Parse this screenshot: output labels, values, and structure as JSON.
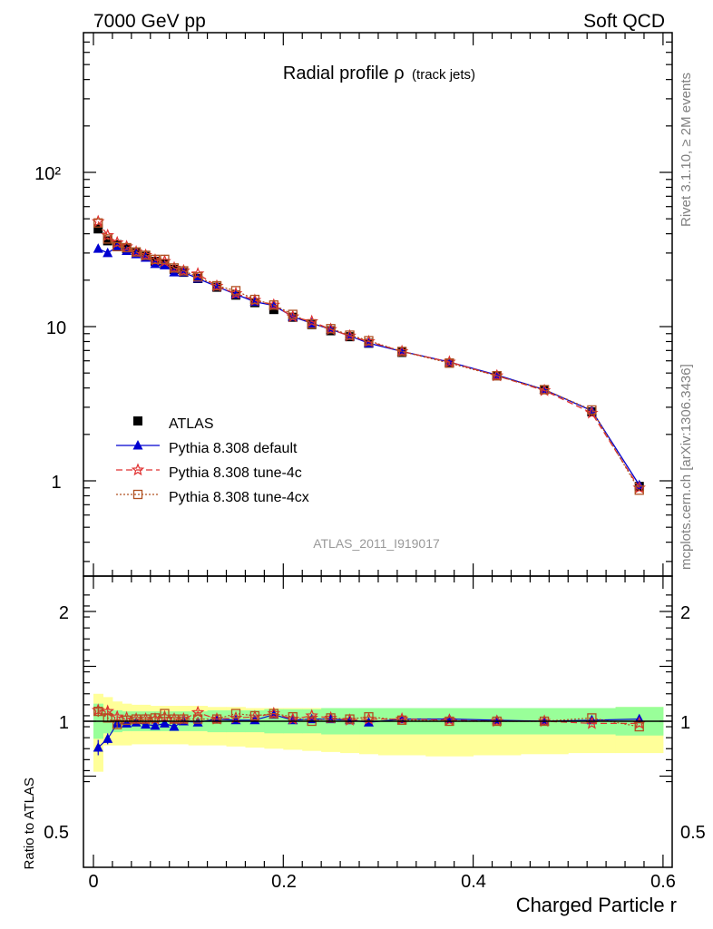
{
  "header": {
    "left": "7000 GeV pp",
    "right": "Soft QCD"
  },
  "side": {
    "top": "Rivet 3.1.10, ≥ 2M events",
    "bottom": "mcplots.cern.ch [arXiv:1306.3436]"
  },
  "chart_data": [
    {
      "type": "line",
      "title_main": "Radial profile ρ",
      "title_sub": "(track jets)",
      "analysis_label": "ATLAS_2011_I919017",
      "yscale": "log",
      "ylim": [
        0.27,
        900
      ],
      "xlim": [
        -0.02,
        0.61
      ],
      "ytick_labels": [
        "1",
        "10",
        "10²"
      ],
      "legend_placement": "lower-left",
      "x": [
        0.005,
        0.015,
        0.025,
        0.035,
        0.045,
        0.055,
        0.065,
        0.075,
        0.085,
        0.095,
        0.11,
        0.13,
        0.15,
        0.17,
        0.19,
        0.21,
        0.23,
        0.25,
        0.27,
        0.29,
        0.325,
        0.375,
        0.425,
        0.475,
        0.525,
        0.575
      ],
      "series": [
        {
          "name": "ATLAS",
          "color": "#000000",
          "marker": "square",
          "values": [
            43,
            36,
            34,
            32,
            30,
            28.5,
            26.5,
            25.5,
            23.5,
            22.5,
            20.5,
            18,
            16,
            14.3,
            12.9,
            11.5,
            10.3,
            9.4,
            8.6,
            7.8,
            6.8,
            5.8,
            4.8,
            3.9,
            2.8,
            0.92
          ]
        },
        {
          "name": "Pythia 8.308 default",
          "color": "#0000d0",
          "marker": "triangle",
          "line": "solid",
          "values": [
            32,
            30,
            33,
            31,
            29.5,
            28,
            25.5,
            25,
            22.5,
            22.5,
            20.5,
            18.2,
            16.2,
            14.5,
            13.7,
            11.6,
            10.5,
            9.6,
            8.7,
            7.8,
            6.9,
            5.9,
            4.85,
            3.9,
            2.85,
            0.94
          ]
        },
        {
          "name": "Pythia 8.308 tune-4c",
          "color": "#e03030",
          "marker": "star",
          "line": "dashed",
          "values": [
            48,
            39,
            35,
            33,
            30.5,
            29,
            27,
            26.5,
            24,
            23,
            22,
            18.3,
            16.4,
            14.8,
            13.8,
            11.6,
            10.8,
            9.6,
            8.7,
            8.0,
            6.9,
            5.9,
            4.8,
            3.85,
            2.75,
            0.9
          ]
        },
        {
          "name": "Pythia 8.308 tune-4cx",
          "color": "#b05020",
          "marker": "open-square",
          "line": "dotted",
          "values": [
            47,
            37,
            33,
            32.5,
            30.5,
            29,
            27.3,
            27.3,
            24,
            23,
            21,
            18.4,
            17.1,
            15,
            13.8,
            12,
            10.4,
            9.7,
            8.8,
            8.1,
            6.9,
            5.8,
            4.8,
            3.9,
            2.88,
            0.87
          ]
        }
      ]
    },
    {
      "type": "line",
      "ylabel": "Ratio to ATLAS",
      "xlabel": "Charged Particle r",
      "ylim": [
        0.4,
        2.3
      ],
      "xlim": [
        -0.02,
        0.61
      ],
      "ytick_labels": [
        "0.5",
        "1",
        "2"
      ],
      "xtick_labels": [
        "0",
        "0.2",
        "0.4",
        "0.6"
      ],
      "reference_line": 1,
      "green_band": [
        [
          0.0,
          0.01,
          0.16
        ],
        [
          0.01,
          0.02,
          0.11
        ],
        [
          0.02,
          0.03,
          0.1
        ],
        [
          0.03,
          0.04,
          0.09
        ],
        [
          0.04,
          0.05,
          0.09
        ],
        [
          0.05,
          0.06,
          0.09
        ],
        [
          0.06,
          0.07,
          0.09
        ],
        [
          0.07,
          0.08,
          0.09
        ],
        [
          0.08,
          0.09,
          0.09
        ],
        [
          0.09,
          0.1,
          0.09
        ],
        [
          0.1,
          0.12,
          0.09
        ],
        [
          0.12,
          0.14,
          0.1
        ],
        [
          0.14,
          0.16,
          0.1
        ],
        [
          0.16,
          0.18,
          0.1
        ],
        [
          0.18,
          0.2,
          0.11
        ],
        [
          0.2,
          0.22,
          0.11
        ],
        [
          0.22,
          0.24,
          0.11
        ],
        [
          0.24,
          0.26,
          0.12
        ],
        [
          0.26,
          0.28,
          0.12
        ],
        [
          0.28,
          0.3,
          0.12
        ],
        [
          0.3,
          0.35,
          0.12
        ],
        [
          0.35,
          0.4,
          0.12
        ],
        [
          0.4,
          0.45,
          0.12
        ],
        [
          0.45,
          0.5,
          0.12
        ],
        [
          0.5,
          0.55,
          0.12
        ],
        [
          0.55,
          0.6,
          0.13
        ]
      ],
      "yellow_band": [
        [
          0.0,
          0.01,
          0.46,
          0.25
        ],
        [
          0.01,
          0.02,
          0.22,
          0.22
        ],
        [
          0.02,
          0.03,
          0.22,
          0.18
        ],
        [
          0.03,
          0.04,
          0.22,
          0.16
        ],
        [
          0.04,
          0.05,
          0.21,
          0.15
        ],
        [
          0.05,
          0.06,
          0.21,
          0.15
        ],
        [
          0.06,
          0.07,
          0.21,
          0.14
        ],
        [
          0.07,
          0.08,
          0.21,
          0.14
        ],
        [
          0.08,
          0.09,
          0.21,
          0.14
        ],
        [
          0.09,
          0.1,
          0.21,
          0.14
        ],
        [
          0.1,
          0.12,
          0.22,
          0.14
        ],
        [
          0.12,
          0.14,
          0.22,
          0.13
        ],
        [
          0.14,
          0.16,
          0.23,
          0.13
        ],
        [
          0.16,
          0.18,
          0.24,
          0.12
        ],
        [
          0.18,
          0.2,
          0.25,
          0.12
        ],
        [
          0.2,
          0.22,
          0.26,
          0.12
        ],
        [
          0.22,
          0.24,
          0.27,
          0.12
        ],
        [
          0.24,
          0.26,
          0.28,
          0.12
        ],
        [
          0.26,
          0.28,
          0.29,
          0.12
        ],
        [
          0.28,
          0.3,
          0.3,
          0.12
        ],
        [
          0.3,
          0.35,
          0.31,
          0.12
        ],
        [
          0.35,
          0.4,
          0.32,
          0.12
        ],
        [
          0.4,
          0.45,
          0.31,
          0.12
        ],
        [
          0.45,
          0.5,
          0.3,
          0.12
        ],
        [
          0.5,
          0.55,
          0.29,
          0.12
        ],
        [
          0.55,
          0.6,
          0.29,
          0.13
        ]
      ],
      "series": [
        {
          "name": "Pythia 8.308 default",
          "color": "#0000d0",
          "marker": "triangle",
          "line": "solid",
          "values": [
            0.76,
            0.84,
            0.98,
            0.98,
            0.99,
            0.97,
            0.96,
            0.98,
            0.95,
            1.0,
            0.99,
            1.02,
            1.01,
            1.01,
            1.06,
            1.01,
            1.02,
            1.02,
            1.01,
            0.99,
            1.02,
            1.02,
            1.01,
            1.0,
            1.01,
            1.02
          ],
          "errors": [
            0.07,
            0.05,
            0.03,
            0.02,
            0.02,
            0.02,
            0.02,
            0.02,
            0.02,
            0.02,
            0.02,
            0.01,
            0.01,
            0.01,
            0.01,
            0.01,
            0.01,
            0.01,
            0.01,
            0.01,
            0.01,
            0.01,
            0.01,
            0.01,
            0.01,
            0.01
          ]
        },
        {
          "name": "Pythia 8.308 tune-4c",
          "color": "#e03030",
          "marker": "star",
          "line": "dashed",
          "values": [
            1.1,
            1.09,
            1.04,
            1.03,
            1.02,
            1.02,
            1.02,
            1.04,
            1.02,
            1.02,
            1.08,
            1.02,
            1.03,
            1.04,
            1.07,
            1.02,
            1.05,
            1.03,
            1.01,
            1.02,
            1.02,
            1.01,
            1.0,
            1.0,
            0.98,
            0.98
          ],
          "errors": [
            0.05,
            0.04,
            0.03,
            0.02,
            0.02,
            0.02,
            0.02,
            0.02,
            0.02,
            0.02,
            0.02,
            0.01,
            0.01,
            0.01,
            0.01,
            0.01,
            0.01,
            0.01,
            0.01,
            0.01,
            0.01,
            0.01,
            0.01,
            0.01,
            0.01,
            0.01
          ]
        },
        {
          "name": "Pythia 8.308 tune-4cx",
          "color": "#b05020",
          "marker": "open-square",
          "line": "dotted",
          "values": [
            1.09,
            1.03,
            0.97,
            1.01,
            1.02,
            1.02,
            1.03,
            1.07,
            1.02,
            1.02,
            1.02,
            1.02,
            1.07,
            1.05,
            1.07,
            1.04,
            1.0,
            1.03,
            1.02,
            1.04,
            1.01,
            1.0,
            1.0,
            1.0,
            1.03,
            0.95
          ],
          "errors": [
            0.05,
            0.04,
            0.03,
            0.02,
            0.02,
            0.02,
            0.02,
            0.02,
            0.02,
            0.02,
            0.02,
            0.01,
            0.01,
            0.01,
            0.01,
            0.01,
            0.01,
            0.01,
            0.01,
            0.01,
            0.01,
            0.01,
            0.01,
            0.01,
            0.01,
            0.01
          ]
        }
      ]
    }
  ]
}
